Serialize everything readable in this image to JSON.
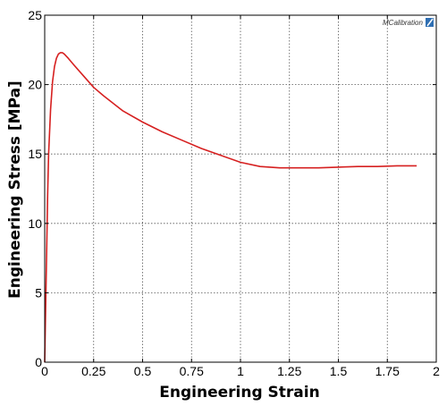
{
  "chart_data": {
    "type": "line",
    "xlabel": "Engineering Strain",
    "ylabel": "Engineering Stress [MPa]",
    "xlim": [
      0,
      2
    ],
    "ylim": [
      0,
      25
    ],
    "xticks": [
      0,
      0.25,
      0.5,
      0.75,
      1,
      1.25,
      1.5,
      1.75,
      2
    ],
    "xtick_labels": [
      "0",
      "0.25",
      "0.5",
      "0.75",
      "1",
      "1.25",
      "1.5",
      "1.75",
      "2"
    ],
    "yticks": [
      0,
      5,
      10,
      15,
      20,
      25
    ],
    "ytick_labels": [
      "0",
      "5",
      "10",
      "15",
      "20",
      "25"
    ],
    "grid": true,
    "series": [
      {
        "color": "#d62020",
        "x": [
          0,
          0.005,
          0.01,
          0.015,
          0.02,
          0.03,
          0.04,
          0.05,
          0.06,
          0.07,
          0.08,
          0.09,
          0.1,
          0.12,
          0.15,
          0.2,
          0.25,
          0.3,
          0.4,
          0.5,
          0.6,
          0.7,
          0.8,
          0.9,
          1.0,
          1.1,
          1.2,
          1.3,
          1.4,
          1.5,
          1.6,
          1.7,
          1.8,
          1.9
        ],
        "y": [
          0,
          4,
          8,
          12,
          15,
          18.2,
          20.2,
          21.3,
          21.9,
          22.2,
          22.3,
          22.3,
          22.2,
          21.9,
          21.4,
          20.6,
          19.8,
          19.2,
          18.1,
          17.3,
          16.6,
          16.0,
          15.4,
          14.9,
          14.4,
          14.1,
          14.0,
          14.0,
          14.0,
          14.05,
          14.1,
          14.1,
          14.15,
          14.15
        ]
      }
    ]
  },
  "logo": {
    "text": "MCalibration"
  }
}
